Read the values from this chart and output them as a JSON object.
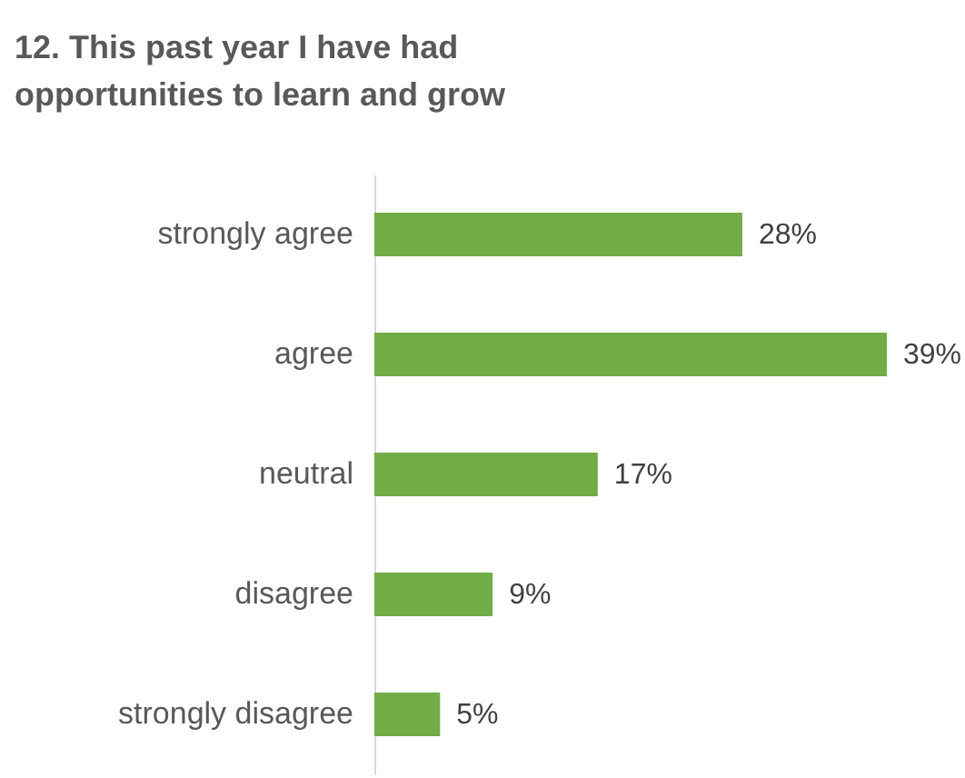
{
  "chart_data": {
    "type": "bar",
    "orientation": "horizontal",
    "title": "12. This past year I have had opportunities to learn and grow",
    "categories": [
      "strongly agree",
      "agree",
      "neutral",
      "disagree",
      "strongly disagree"
    ],
    "values": [
      28,
      39,
      17,
      9,
      5
    ],
    "value_labels": [
      "28%",
      "39%",
      "17%",
      "9%",
      "5%"
    ],
    "color": "#70ad47",
    "grid": false
  }
}
